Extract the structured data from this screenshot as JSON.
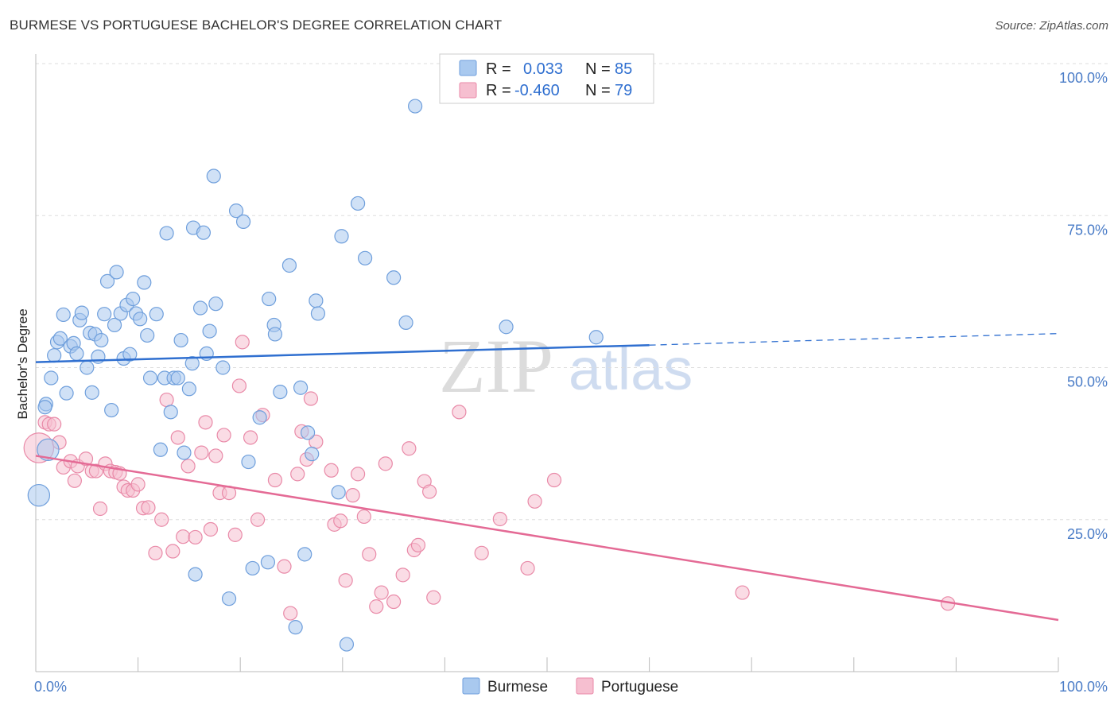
{
  "title": "BURMESE VS PORTUGUESE BACHELOR'S DEGREE CORRELATION CHART",
  "source": "Source: ZipAtlas.com",
  "watermark": {
    "zip": "ZIP",
    "atlas": "atlas"
  },
  "legend": {
    "r_label": "R =",
    "n_label": "N =",
    "burmese": {
      "r": "0.033",
      "n": "85"
    },
    "portuguese": {
      "r": "-0.460",
      "n": "79"
    }
  },
  "colors": {
    "burmese_fill": "#a9c9ef",
    "burmese_stroke": "#6f9fdc",
    "burmese_line": "#2f6fd0",
    "portuguese_fill": "#f6bfd0",
    "portuguese_stroke": "#e98aa8",
    "portuguese_line": "#e46a95",
    "tick_text": "#4a7cc7",
    "grid": "#dddddd"
  },
  "chart_data": {
    "type": "scatter",
    "title": "BURMESE VS PORTUGUESE BACHELOR'S DEGREE CORRELATION CHART",
    "xlabel": "",
    "ylabel": "Bachelor's Degree",
    "xlim": [
      0,
      100
    ],
    "ylim": [
      0,
      100
    ],
    "x_tick_labels": [
      "0.0%",
      "100.0%"
    ],
    "y_ticks": [
      25,
      50,
      75,
      100
    ],
    "y_tick_labels": [
      "25.0%",
      "50.0%",
      "75.0%",
      "100.0%"
    ],
    "grid": true,
    "legend_position": "top-center",
    "bottom_legend": [
      "Burmese",
      "Portuguese"
    ],
    "series": [
      {
        "name": "Burmese",
        "r": 0.033,
        "n": 85,
        "trend": {
          "x0": 0,
          "y0": 50.9,
          "x1": 60,
          "y1": 53.7,
          "dashed_to_x": 100,
          "dashed_to_y": 55.6
        },
        "points": [
          [
            0.3,
            29,
            1.6
          ],
          [
            1.2,
            36.5,
            1.6
          ],
          [
            1.0,
            44,
            1
          ],
          [
            0.9,
            43.5,
            1
          ],
          [
            1.5,
            48.3,
            1
          ],
          [
            1.8,
            52,
            1
          ],
          [
            2.1,
            54.2,
            1
          ],
          [
            2.4,
            54.8,
            1
          ],
          [
            2.7,
            58.7,
            1
          ],
          [
            3.0,
            45.8,
            1
          ],
          [
            3.4,
            53.5,
            1
          ],
          [
            3.7,
            54,
            1
          ],
          [
            4.0,
            52.3,
            1
          ],
          [
            4.3,
            57.8,
            1
          ],
          [
            4.5,
            59,
            1
          ],
          [
            5.0,
            50,
            1
          ],
          [
            5.3,
            55.7,
            1
          ],
          [
            5.5,
            45.9,
            1
          ],
          [
            5.8,
            55.5,
            1
          ],
          [
            6.1,
            51.8,
            1
          ],
          [
            6.4,
            54.5,
            1
          ],
          [
            6.7,
            58.8,
            1
          ],
          [
            7.0,
            64.2,
            1
          ],
          [
            7.4,
            43,
            1
          ],
          [
            7.7,
            57,
            1
          ],
          [
            7.9,
            65.7,
            1
          ],
          [
            8.3,
            58.9,
            1
          ],
          [
            8.6,
            51.5,
            1
          ],
          [
            8.9,
            60.3,
            1
          ],
          [
            9.2,
            52.2,
            1
          ],
          [
            9.5,
            61.3,
            1
          ],
          [
            9.8,
            58.9,
            1
          ],
          [
            10.2,
            58,
            1
          ],
          [
            10.6,
            64,
            1
          ],
          [
            10.9,
            55.3,
            1
          ],
          [
            11.2,
            48.3,
            1
          ],
          [
            11.8,
            58.8,
            1
          ],
          [
            12.2,
            36.5,
            1
          ],
          [
            12.6,
            48.3,
            1
          ],
          [
            12.8,
            72.1,
            1
          ],
          [
            13.2,
            42.7,
            1
          ],
          [
            13.5,
            48.3,
            1
          ],
          [
            13.9,
            48.3,
            1
          ],
          [
            14.2,
            54.5,
            1
          ],
          [
            14.5,
            36,
            1
          ],
          [
            15.0,
            46.5,
            1
          ],
          [
            15.3,
            50.7,
            1
          ],
          [
            15.4,
            73,
            1
          ],
          [
            15.6,
            16,
            1
          ],
          [
            16.1,
            59.8,
            1
          ],
          [
            16.4,
            72.2,
            1
          ],
          [
            16.7,
            52.3,
            1
          ],
          [
            17.0,
            56,
            1
          ],
          [
            17.4,
            81.5,
            1
          ],
          [
            17.6,
            60.5,
            1
          ],
          [
            18.3,
            50,
            1
          ],
          [
            18.9,
            12,
            1
          ],
          [
            19.6,
            75.8,
            1
          ],
          [
            20.3,
            74,
            1
          ],
          [
            20.8,
            34.5,
            1
          ],
          [
            21.2,
            17,
            1
          ],
          [
            21.9,
            41.8,
            1
          ],
          [
            22.7,
            18,
            1
          ],
          [
            22.8,
            61.3,
            1
          ],
          [
            23.3,
            57,
            1
          ],
          [
            23.4,
            55.5,
            1
          ],
          [
            23.9,
            46,
            1
          ],
          [
            24.8,
            66.8,
            1
          ],
          [
            25.4,
            7.3,
            1
          ],
          [
            25.9,
            46.7,
            1
          ],
          [
            26.3,
            19.3,
            1
          ],
          [
            26.6,
            39.3,
            1
          ],
          [
            27.0,
            35.8,
            1
          ],
          [
            27.4,
            61,
            1
          ],
          [
            27.6,
            58.9,
            1
          ],
          [
            29.6,
            29.5,
            1
          ],
          [
            29.9,
            71.6,
            1
          ],
          [
            30.4,
            4.5,
            1
          ],
          [
            31.5,
            77,
            1
          ],
          [
            32.2,
            68,
            1
          ],
          [
            35.0,
            64.8,
            1
          ],
          [
            36.2,
            57.4,
            1
          ],
          [
            37.1,
            93,
            1
          ],
          [
            46.0,
            56.7,
            1
          ],
          [
            54.8,
            55,
            1
          ]
        ]
      },
      {
        "name": "Portuguese",
        "r": -0.46,
        "n": 79,
        "trend": {
          "x0": 0,
          "y0": 35.5,
          "x1": 100,
          "y1": 8.5
        },
        "points": [
          [
            0.3,
            36.8,
            2.2
          ],
          [
            0.9,
            41,
            1
          ],
          [
            1.3,
            40.7,
            1
          ],
          [
            1.8,
            40.7,
            1
          ],
          [
            2.3,
            37.7,
            1
          ],
          [
            2.7,
            33.6,
            1
          ],
          [
            3.4,
            34.6,
            1
          ],
          [
            3.8,
            31.4,
            1
          ],
          [
            4.1,
            33.8,
            1
          ],
          [
            4.9,
            35,
            1
          ],
          [
            5.5,
            33,
            1
          ],
          [
            5.9,
            33,
            1
          ],
          [
            6.3,
            26.8,
            1
          ],
          [
            6.8,
            34.2,
            1
          ],
          [
            7.3,
            33,
            1
          ],
          [
            7.8,
            32.8,
            1
          ],
          [
            8.2,
            32.6,
            1
          ],
          [
            8.6,
            30.4,
            1
          ],
          [
            9.0,
            29.8,
            1
          ],
          [
            9.5,
            29.8,
            1
          ],
          [
            10.0,
            30.8,
            1
          ],
          [
            10.5,
            26.9,
            1
          ],
          [
            11.0,
            27,
            1
          ],
          [
            11.7,
            19.5,
            1
          ],
          [
            12.3,
            25,
            1
          ],
          [
            12.8,
            44.7,
            1
          ],
          [
            13.4,
            19.8,
            1
          ],
          [
            13.9,
            38.5,
            1
          ],
          [
            14.4,
            22.2,
            1
          ],
          [
            14.9,
            33.8,
            1
          ],
          [
            15.6,
            22.1,
            1
          ],
          [
            16.2,
            36,
            1
          ],
          [
            16.6,
            41,
            1
          ],
          [
            17.1,
            23.4,
            1
          ],
          [
            17.6,
            35.5,
            1
          ],
          [
            18.0,
            29.4,
            1
          ],
          [
            18.4,
            38.9,
            1
          ],
          [
            18.9,
            29.4,
            1
          ],
          [
            19.5,
            22.5,
            1
          ],
          [
            19.9,
            47,
            1
          ],
          [
            20.2,
            54.2,
            1
          ],
          [
            21.0,
            38.5,
            1
          ],
          [
            21.7,
            25,
            1
          ],
          [
            22.2,
            42.2,
            1
          ],
          [
            23.4,
            31.5,
            1
          ],
          [
            24.3,
            17.3,
            1
          ],
          [
            24.9,
            9.6,
            1
          ],
          [
            25.6,
            32.5,
            1
          ],
          [
            26.0,
            39.5,
            1
          ],
          [
            26.5,
            34.9,
            1
          ],
          [
            26.9,
            44.9,
            1
          ],
          [
            27.4,
            37.8,
            1
          ],
          [
            28.9,
            33.1,
            1
          ],
          [
            29.2,
            24.2,
            1
          ],
          [
            29.8,
            24.8,
            1
          ],
          [
            30.3,
            15,
            1
          ],
          [
            31.0,
            29,
            1
          ],
          [
            31.5,
            32.5,
            1
          ],
          [
            32.1,
            25.5,
            1
          ],
          [
            32.6,
            19.3,
            1
          ],
          [
            33.3,
            10.7,
            1
          ],
          [
            33.8,
            13,
            1
          ],
          [
            34.2,
            34.2,
            1
          ],
          [
            35.0,
            11.5,
            1
          ],
          [
            35.9,
            15.9,
            1
          ],
          [
            36.5,
            36.7,
            1
          ],
          [
            37.0,
            20,
            1
          ],
          [
            37.4,
            20.8,
            1
          ],
          [
            38.0,
            31.3,
            1
          ],
          [
            38.5,
            29.6,
            1
          ],
          [
            38.9,
            12.2,
            1
          ],
          [
            41.4,
            42.7,
            1
          ],
          [
            43.6,
            19.5,
            1
          ],
          [
            45.4,
            25.1,
            1
          ],
          [
            48.1,
            17,
            1
          ],
          [
            48.8,
            28,
            1
          ],
          [
            50.7,
            31.5,
            1
          ],
          [
            69.1,
            13,
            1
          ],
          [
            89.2,
            11.2,
            1
          ]
        ]
      }
    ]
  }
}
